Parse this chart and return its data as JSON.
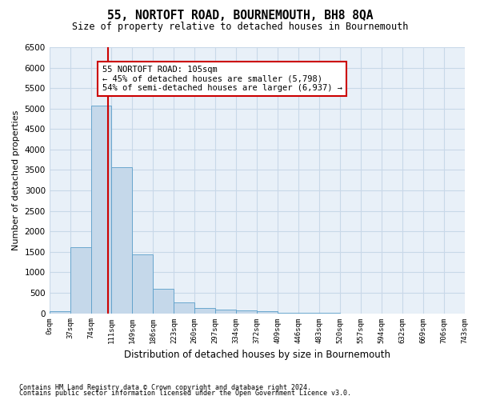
{
  "title": "55, NORTOFT ROAD, BOURNEMOUTH, BH8 8QA",
  "subtitle": "Size of property relative to detached houses in Bournemouth",
  "xlabel": "Distribution of detached houses by size in Bournemouth",
  "ylabel": "Number of detached properties",
  "footnote1": "Contains HM Land Registry data © Crown copyright and database right 2024.",
  "footnote2": "Contains public sector information licensed under the Open Government Licence v3.0.",
  "bin_labels": [
    "0sqm",
    "37sqm",
    "74sqm",
    "111sqm",
    "149sqm",
    "186sqm",
    "223sqm",
    "260sqm",
    "297sqm",
    "334sqm",
    "372sqm",
    "409sqm",
    "446sqm",
    "483sqm",
    "520sqm",
    "557sqm",
    "594sqm",
    "632sqm",
    "669sqm",
    "706sqm",
    "743sqm"
  ],
  "bar_values": [
    50,
    1620,
    5080,
    3560,
    1430,
    590,
    270,
    120,
    80,
    60,
    50,
    5,
    5,
    5,
    0,
    0,
    0,
    0,
    0,
    0
  ],
  "bar_color": "#c5d8ea",
  "bar_edge_color": "#5a9ec9",
  "grid_color": "#c8d8e8",
  "property_line_color": "#cc0000",
  "annotation_text": "55 NORTOFT ROAD: 105sqm\n← 45% of detached houses are smaller (5,798)\n54% of semi-detached houses are larger (6,937) →",
  "annotation_box_color": "#ffffff",
  "annotation_border_color": "#cc0000",
  "ylim": [
    0,
    6500
  ],
  "yticks": [
    0,
    500,
    1000,
    1500,
    2000,
    2500,
    3000,
    3500,
    4000,
    4500,
    5000,
    5500,
    6000,
    6500
  ],
  "bg_color": "#e8f0f8"
}
